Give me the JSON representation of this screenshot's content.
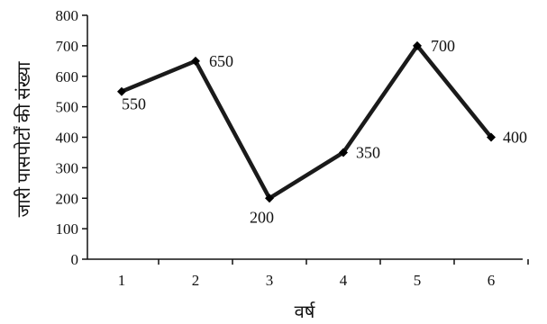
{
  "chart_data": {
    "type": "line",
    "x": [
      "1",
      "2",
      "3",
      "4",
      "5",
      "6"
    ],
    "series": [
      {
        "values": [
          550,
          650,
          200,
          350,
          700,
          400
        ]
      }
    ],
    "data_labels": [
      "550",
      "650",
      "200",
      "350",
      "700",
      "400"
    ],
    "title": "",
    "xlabel": "वर्ष",
    "ylabel": "जारी पासपोर्टों की संख्या",
    "ylim": [
      0,
      800
    ],
    "yticks": [
      0,
      100,
      200,
      300,
      400,
      500,
      600,
      700,
      800
    ],
    "grid": false,
    "legend": "none",
    "line_color": "#1a1a1a",
    "marker": "diamond"
  }
}
